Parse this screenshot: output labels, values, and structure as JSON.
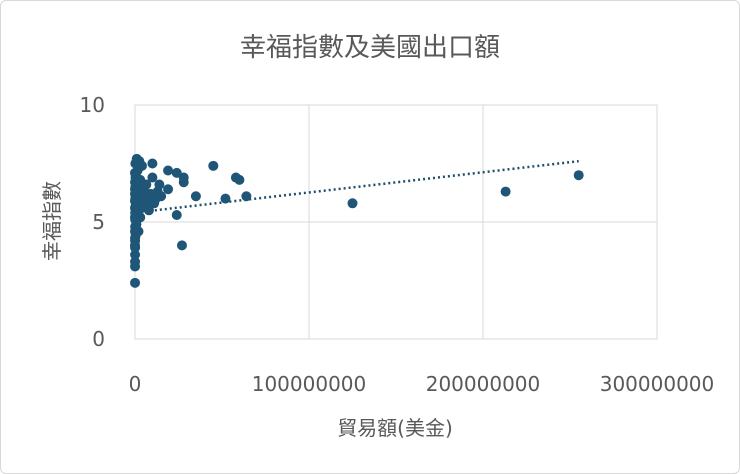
{
  "chart_data": {
    "type": "scatter",
    "title": "幸福指數及美國出口額",
    "xlabel": "貿易額(美金)",
    "ylabel": "幸福指數",
    "xlim": [
      0,
      300000000
    ],
    "ylim": [
      0,
      10
    ],
    "x_ticks": [
      0,
      100000000,
      200000000,
      300000000
    ],
    "x_tick_labels": [
      "0",
      "100000000",
      "200000000",
      "300000000"
    ],
    "y_ticks": [
      0,
      5,
      10
    ],
    "y_tick_labels": [
      "0",
      "5",
      "10"
    ],
    "grid": true,
    "legend": "none",
    "series_color": "#1f5677",
    "trendline": {
      "type": "linear",
      "style": "dotted",
      "color": "#1f4e6b",
      "x": [
        0,
        255000000
      ],
      "y": [
        5.4,
        7.6
      ]
    },
    "points": [
      {
        "x": 45000000,
        "y": 7.4
      },
      {
        "x": 58000000,
        "y": 6.9
      },
      {
        "x": 60000000,
        "y": 6.8
      },
      {
        "x": 64000000,
        "y": 6.1
      },
      {
        "x": 125000000,
        "y": 5.8
      },
      {
        "x": 213000000,
        "y": 6.3
      },
      {
        "x": 255000000,
        "y": 7.0
      },
      {
        "x": 27000000,
        "y": 4.0
      },
      {
        "x": 24000000,
        "y": 5.3
      },
      {
        "x": 52000000,
        "y": 6.0
      },
      {
        "x": 35000000,
        "y": 6.1
      },
      {
        "x": 28000000,
        "y": 6.9
      },
      {
        "x": 28000000,
        "y": 6.7
      },
      {
        "x": 24000000,
        "y": 7.1
      },
      {
        "x": 19000000,
        "y": 7.2
      },
      {
        "x": 19000000,
        "y": 6.4
      },
      {
        "x": 14000000,
        "y": 6.6
      },
      {
        "x": 13000000,
        "y": 6.3
      },
      {
        "x": 11000000,
        "y": 5.8
      },
      {
        "x": 10000000,
        "y": 7.5
      },
      {
        "x": 10000000,
        "y": 6.9
      },
      {
        "x": 9000000,
        "y": 6.2
      },
      {
        "x": 8000000,
        "y": 5.5
      },
      {
        "x": 7000000,
        "y": 6.0
      },
      {
        "x": 6000000,
        "y": 5.9
      },
      {
        "x": 5000000,
        "y": 6.4
      },
      {
        "x": 4000000,
        "y": 7.4
      },
      {
        "x": 4000000,
        "y": 5.6
      },
      {
        "x": 3000000,
        "y": 6.8
      },
      {
        "x": 3000000,
        "y": 5.2
      },
      {
        "x": 2500000,
        "y": 7.6
      },
      {
        "x": 2000000,
        "y": 6.1
      },
      {
        "x": 2000000,
        "y": 4.6
      },
      {
        "x": 1500000,
        "y": 7.2
      },
      {
        "x": 1500000,
        "y": 5.8
      },
      {
        "x": 1000000,
        "y": 7.7
      },
      {
        "x": 1000000,
        "y": 6.6
      },
      {
        "x": 1000000,
        "y": 5.5
      },
      {
        "x": 800000,
        "y": 4.9
      },
      {
        "x": 600000,
        "y": 6.3
      },
      {
        "x": 500000,
        "y": 7.0
      },
      {
        "x": 400000,
        "y": 5.7
      },
      {
        "x": 300000,
        "y": 6.9
      },
      {
        "x": 300000,
        "y": 4.4
      },
      {
        "x": 200000,
        "y": 7.5
      },
      {
        "x": 200000,
        "y": 6.5
      },
      {
        "x": 150000,
        "y": 6.0
      },
      {
        "x": 100000,
        "y": 5.4
      },
      {
        "x": 100000,
        "y": 5.1
      },
      {
        "x": 80000,
        "y": 4.8
      },
      {
        "x": 60000,
        "y": 4.2
      },
      {
        "x": 50000,
        "y": 3.9
      },
      {
        "x": 40000,
        "y": 3.6
      },
      {
        "x": 30000,
        "y": 3.3
      },
      {
        "x": 20000,
        "y": 3.1
      },
      {
        "x": 20000,
        "y": 2.4
      },
      {
        "x": 10000,
        "y": 4.6
      },
      {
        "x": 10000,
        "y": 5.2
      },
      {
        "x": 10000,
        "y": 6.2
      },
      {
        "x": 5000,
        "y": 6.7
      },
      {
        "x": 5000,
        "y": 5.9
      },
      {
        "x": 1000,
        "y": 4.0
      },
      {
        "x": 1000,
        "y": 5.6
      },
      {
        "x": 1000,
        "y": 6.4
      },
      {
        "x": 500,
        "y": 7.1
      },
      {
        "x": 500,
        "y": 4.3
      },
      {
        "x": 1200000,
        "y": 6.1
      },
      {
        "x": 1800000,
        "y": 5.3
      },
      {
        "x": 2200000,
        "y": 6.5
      },
      {
        "x": 3500000,
        "y": 6.2
      },
      {
        "x": 6500000,
        "y": 6.6
      },
      {
        "x": 7500000,
        "y": 5.7
      },
      {
        "x": 9500000,
        "y": 5.9
      },
      {
        "x": 12000000,
        "y": 6.0
      },
      {
        "x": 15000000,
        "y": 6.1
      }
    ]
  }
}
